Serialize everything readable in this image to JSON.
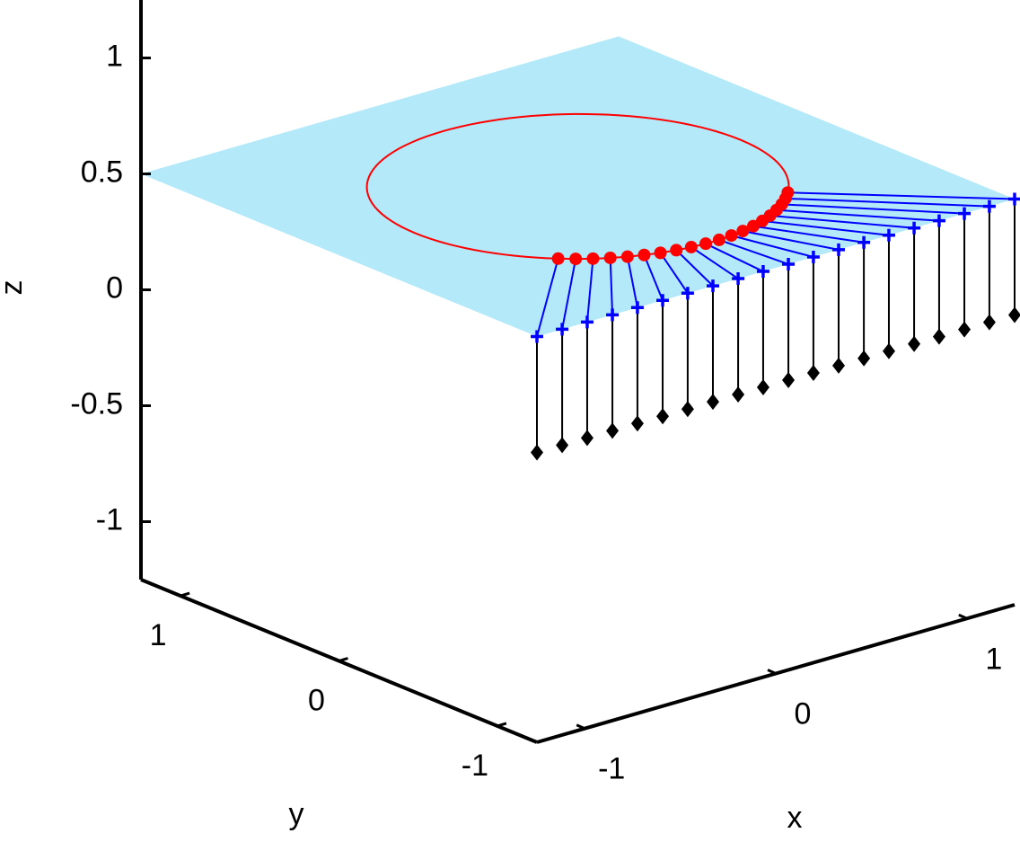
{
  "chart_data": {
    "type": "scatter3d",
    "xlabel": "x",
    "ylabel": "y",
    "zlabel": "z",
    "xlim": [
      -1.25,
      1.25
    ],
    "ylim": [
      -1.25,
      1.25
    ],
    "zlim": [
      -1.25,
      1.25
    ],
    "xticks": [
      -1,
      0,
      1
    ],
    "yticks": [
      -1,
      0,
      1
    ],
    "zticks": [
      -1,
      -0.5,
      0,
      0.5,
      1
    ],
    "plane": {
      "z": 0.5,
      "color": "#b3e9f9"
    },
    "circle": {
      "center": [
        0,
        0,
        0.5
      ],
      "radius": 0.85,
      "color": "#ff0000"
    },
    "series": [
      {
        "color": "#ff0000",
        "marker": "circle",
        "x": [
          -0.601,
          -0.549,
          -0.494,
          -0.435,
          -0.373,
          -0.309,
          -0.243,
          -0.174,
          -0.105,
          -0.035,
          0.035,
          0.105,
          0.174,
          0.243,
          0.309,
          0.373,
          0.435,
          0.494,
          0.549,
          0.601
        ],
        "y": [
          -0.601,
          -0.649,
          -0.692,
          -0.73,
          -0.764,
          -0.792,
          -0.815,
          -0.832,
          -0.843,
          -0.85,
          -0.85,
          -0.843,
          -0.832,
          -0.815,
          -0.792,
          -0.764,
          -0.73,
          -0.692,
          -0.649,
          -0.601
        ],
        "z": [
          0.5,
          0.5,
          0.5,
          0.5,
          0.5,
          0.5,
          0.5,
          0.5,
          0.5,
          0.5,
          0.5,
          0.5,
          0.5,
          0.5,
          0.5,
          0.5,
          0.5,
          0.5,
          0.5,
          0.5
        ]
      },
      {
        "color": "#0000ff",
        "marker": "plus",
        "x": [
          -1.25,
          -1.118,
          -0.987,
          -0.855,
          -0.724,
          -0.592,
          -0.461,
          -0.329,
          -0.197,
          -0.066,
          0.066,
          0.197,
          0.329,
          0.461,
          0.592,
          0.724,
          0.855,
          0.987,
          1.118,
          1.25
        ],
        "y": [
          -1.25,
          -1.25,
          -1.25,
          -1.25,
          -1.25,
          -1.25,
          -1.25,
          -1.25,
          -1.25,
          -1.25,
          -1.25,
          -1.25,
          -1.25,
          -1.25,
          -1.25,
          -1.25,
          -1.25,
          -1.25,
          -1.25,
          -1.25
        ],
        "z": [
          0.5,
          0.5,
          0.5,
          0.5,
          0.5,
          0.5,
          0.5,
          0.5,
          0.5,
          0.5,
          0.5,
          0.5,
          0.5,
          0.5,
          0.5,
          0.5,
          0.5,
          0.5,
          0.5,
          0.5
        ]
      },
      {
        "color": "#000000",
        "marker": "diamond",
        "x": [
          -1.25,
          -1.118,
          -0.987,
          -0.855,
          -0.724,
          -0.592,
          -0.461,
          -0.329,
          -0.197,
          -0.066,
          0.066,
          0.197,
          0.329,
          0.461,
          0.592,
          0.724,
          0.855,
          0.987,
          1.118,
          1.25
        ],
        "y": [
          -1.25,
          -1.25,
          -1.25,
          -1.25,
          -1.25,
          -1.25,
          -1.25,
          -1.25,
          -1.25,
          -1.25,
          -1.25,
          -1.25,
          -1.25,
          -1.25,
          -1.25,
          -1.25,
          -1.25,
          -1.25,
          -1.25,
          -1.25
        ],
        "z": [
          0,
          0,
          0,
          0,
          0,
          0,
          0,
          0,
          0,
          0,
          0,
          0,
          0,
          0,
          0,
          0,
          0,
          0,
          0,
          0
        ]
      }
    ]
  }
}
